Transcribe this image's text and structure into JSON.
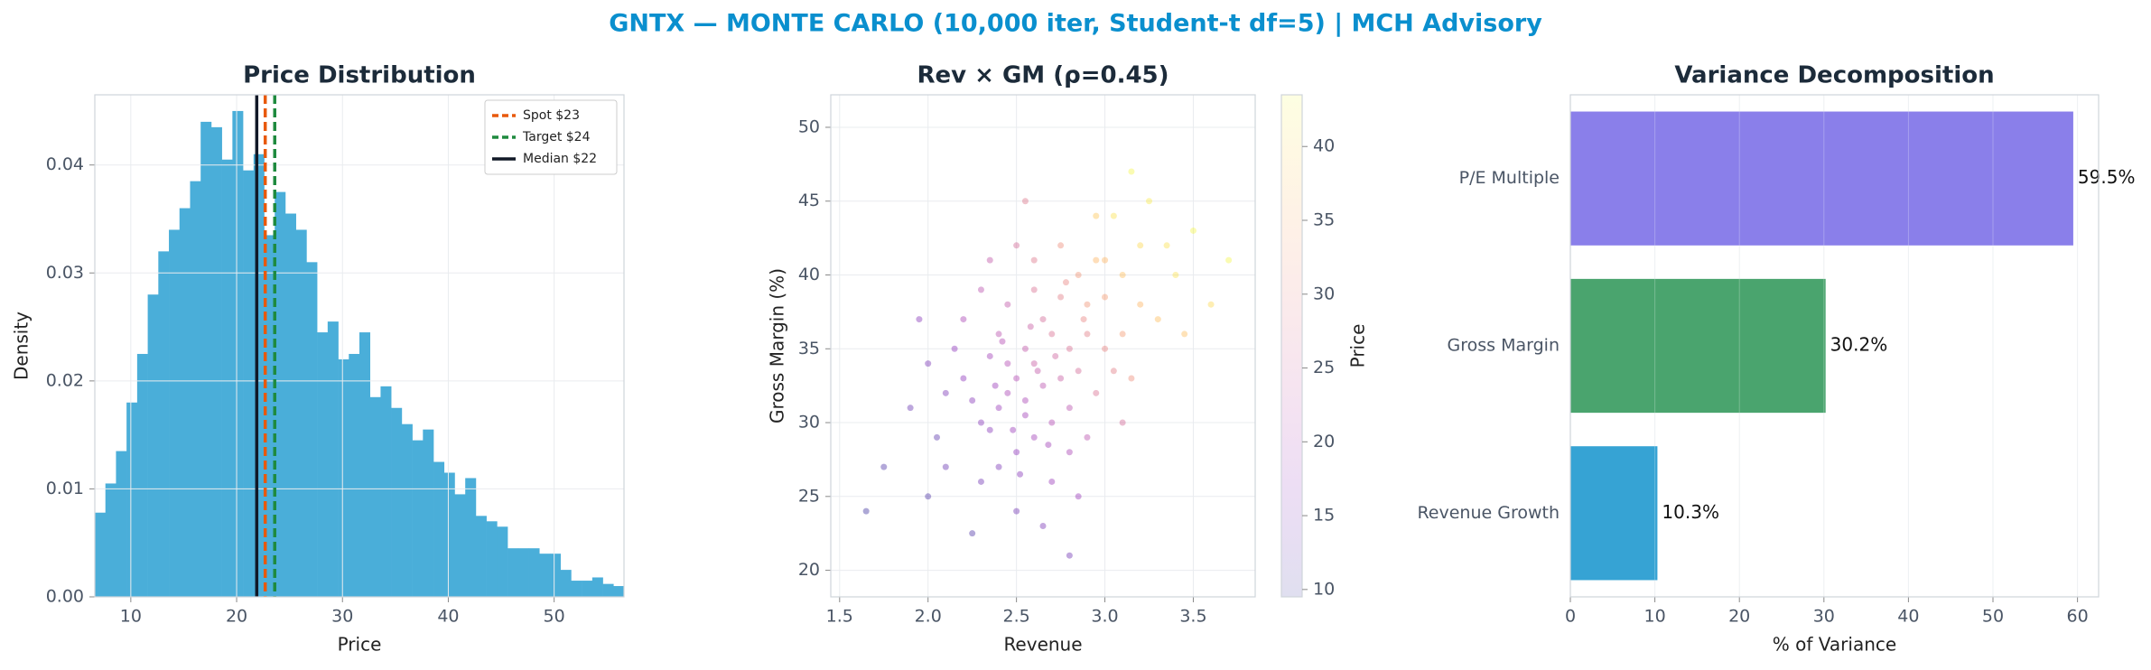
{
  "title": "GNTX — MONTE CARLO (10,000 iter, Student-t df=5) | MCH Advisory",
  "chart_data": [
    {
      "type": "histogram",
      "title": "Price Distribution",
      "xlabel": "Price",
      "ylabel": "Density",
      "color": "#4aaed9",
      "bins": [
        6.6,
        7.6,
        8.6,
        9.6,
        10.6,
        11.6,
        12.6,
        13.6,
        14.6,
        15.6,
        16.6,
        17.6,
        18.6,
        19.6,
        20.6,
        21.6,
        22.6,
        23.6,
        24.6,
        25.6,
        26.6,
        27.6,
        28.6,
        29.6,
        30.6,
        31.6,
        32.6,
        33.6,
        34.6,
        35.6,
        36.6,
        37.6,
        38.6,
        39.6,
        40.6,
        41.6,
        42.6,
        43.6,
        44.6,
        45.6,
        46.6,
        47.6,
        48.6,
        49.6,
        50.6,
        51.6,
        52.6,
        53.6,
        54.6,
        55.6,
        56.6
      ],
      "values": [
        0.0078,
        0.0105,
        0.0135,
        0.018,
        0.0225,
        0.028,
        0.032,
        0.034,
        0.036,
        0.0385,
        0.044,
        0.0435,
        0.0405,
        0.045,
        0.0395,
        0.041,
        0.0335,
        0.0375,
        0.0355,
        0.034,
        0.031,
        0.0245,
        0.0255,
        0.022,
        0.0225,
        0.0245,
        0.0185,
        0.0195,
        0.0175,
        0.016,
        0.0145,
        0.0155,
        0.0125,
        0.0115,
        0.0095,
        0.011,
        0.0075,
        0.007,
        0.0065,
        0.0045,
        0.0045,
        0.0045,
        0.004,
        0.004,
        0.0025,
        0.0015,
        0.0015,
        0.0018,
        0.0012,
        0.001
      ],
      "xlim": [
        6.6,
        56.6
      ],
      "ylim": [
        0,
        0.0465
      ],
      "xticks": [
        10,
        20,
        30,
        40,
        50
      ],
      "yticks": [
        {
          "value": 0,
          "label": "0.00"
        },
        {
          "value": 0.01,
          "label": "0.01"
        },
        {
          "value": 0.02,
          "label": "0.02"
        },
        {
          "value": 0.03,
          "label": "0.03"
        },
        {
          "value": 0.04,
          "label": "0.04"
        }
      ],
      "grid": true,
      "legend": "upper right",
      "vlines": [
        {
          "name": "Spot $23",
          "value": 22.7,
          "color": "#e8590c",
          "style": "dashed"
        },
        {
          "name": "Target $24",
          "value": 23.6,
          "color": "#1e8a3e",
          "style": "dashed"
        },
        {
          "name": "Median $22",
          "value": 21.9,
          "color": "#111827",
          "style": "solid"
        }
      ]
    },
    {
      "type": "scatter",
      "title": "Rev × GM (ρ=0.45)",
      "xlabel": "Revenue",
      "ylabel": "Gross Margin (%)",
      "colorbar_label": "Price",
      "colormap": "plasma",
      "x": [
        2.45,
        2.6,
        2.3,
        2.7,
        2.9,
        3.1,
        2.5,
        2.2,
        2.8,
        3.0,
        2.4,
        2.65,
        2.55,
        2.35,
        2.75,
        3.2,
        3.05,
        2.95,
        2.85,
        2.5,
        2.6,
        2.1,
        1.9,
        2.0,
        2.3,
        2.45,
        2.7,
        2.9,
        3.3,
        3.4,
        3.5,
        3.15,
        2.4,
        2.55,
        2.65,
        2.8,
        2.75,
        2.35,
        2.25,
        2.15,
        2.85,
        3.0,
        3.1,
        2.95,
        2.5,
        2.6,
        2.3,
        3.25,
        3.6,
        2.05,
        1.75,
        1.65,
        2.7,
        2.55,
        2.45,
        2.62,
        2.72,
        2.38,
        2.48,
        2.58,
        2.8,
        2.9,
        3.0,
        3.2,
        3.35,
        2.2,
        2.1,
        2.0,
        2.4,
        2.65,
        2.85,
        3.1,
        2.95,
        2.75,
        2.6,
        2.5,
        3.45,
        3.7,
        2.35,
        2.52,
        2.68,
        2.78,
        3.05,
        2.88,
        2.42,
        1.95,
        2.25,
        2.8,
        3.15,
        2.55
      ],
      "y": [
        32,
        34,
        30,
        36,
        38,
        40,
        28,
        33,
        31,
        35,
        36,
        32.5,
        30.5,
        34.5,
        38.5,
        42,
        44,
        41,
        33.5,
        33,
        29,
        27,
        31,
        25,
        26,
        38,
        26,
        29,
        37,
        40,
        43,
        33,
        31,
        35,
        37,
        35,
        33,
        29.5,
        31.5,
        35,
        40,
        38.5,
        36,
        32,
        24,
        41,
        39,
        45,
        38,
        29,
        27,
        24,
        30,
        31.5,
        34,
        33.5,
        34.5,
        32.5,
        29.5,
        36.5,
        28,
        36,
        41,
        38,
        42,
        37,
        32,
        34,
        27,
        23,
        25,
        30,
        44,
        42,
        39,
        42,
        36,
        41,
        41,
        26.5,
        28.5,
        39.5,
        33.5,
        37,
        35.5,
        37,
        22.5,
        21,
        47,
        45
      ],
      "c": [
        20,
        24,
        16,
        27,
        32,
        37,
        17,
        17,
        22,
        30,
        22,
        22,
        19,
        19,
        29,
        40,
        41,
        36,
        26,
        21,
        19,
        13,
        13,
        11,
        14,
        23,
        18,
        22,
        37,
        41,
        43,
        31,
        18,
        23,
        26,
        27,
        24,
        16,
        16,
        17,
        32,
        33,
        33,
        27,
        14,
        28,
        22,
        42,
        40,
        12,
        11,
        10,
        21,
        20,
        21,
        23,
        25,
        18,
        18,
        24,
        20,
        29,
        36,
        36,
        41,
        20,
        15,
        15,
        15,
        15,
        18,
        26,
        38,
        31,
        27,
        26,
        37,
        43,
        23,
        16,
        19,
        30,
        29,
        30,
        21,
        16,
        11,
        14,
        43,
        28
      ],
      "xlim": [
        1.45,
        3.85
      ],
      "ylim": [
        18.2,
        52.2
      ],
      "clim": [
        9.5,
        43.5
      ],
      "xticks": [
        1.5,
        {
          "value": 2,
          "label": "2.0"
        },
        2.5,
        {
          "value": 3,
          "label": "3.0"
        },
        3.5
      ],
      "yticks": [
        20,
        25,
        30,
        35,
        40,
        45,
        50
      ],
      "cticks": [
        10,
        15,
        20,
        25,
        30,
        35,
        40
      ],
      "grid": true
    },
    {
      "type": "barh",
      "title": "Variance Decomposition",
      "xlabel": "% of Variance",
      "categories": [
        "Revenue Growth",
        "Gross Margin",
        "P/E Multiple"
      ],
      "values": [
        10.3,
        30.2,
        59.5
      ],
      "value_labels": [
        "10.3%",
        "30.2%",
        "59.5%"
      ],
      "colors": [
        "#36a3d4",
        "#4aa46e",
        "#8a7fea"
      ],
      "xlim": [
        0,
        62.5
      ],
      "xticks": [
        0,
        10,
        20,
        30,
        40,
        50,
        60
      ],
      "grid": true
    }
  ]
}
